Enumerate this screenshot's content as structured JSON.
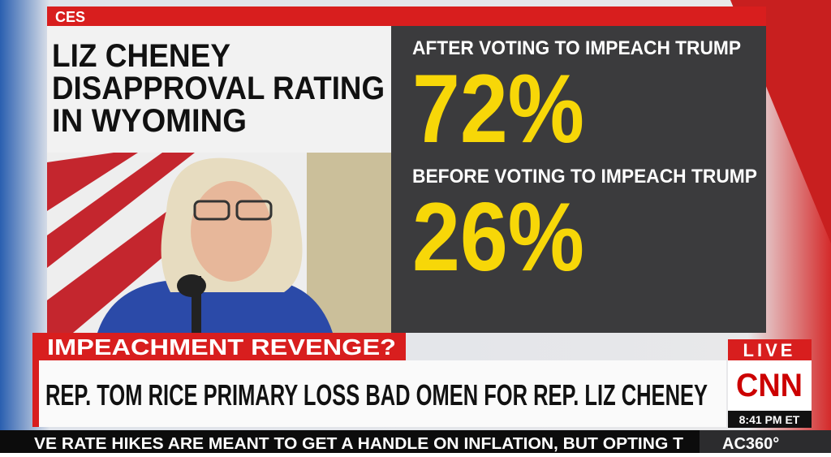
{
  "graphic": {
    "source": "CES",
    "title_lines": [
      "LIZ CHENEY",
      "DISAPPROVAL RATING",
      "IN WYOMING"
    ],
    "after_label": "AFTER VOTING TO IMPEACH TRUMP",
    "after_value": "72%",
    "before_label": "BEFORE VOTING TO IMPEACH TRUMP",
    "before_value": "26%"
  },
  "lower_third": {
    "tag": "IMPEACHMENT REVENGE?",
    "headline": "REP. TOM RICE PRIMARY LOSS BAD OMEN FOR REP. LIZ CHENEY"
  },
  "bug": {
    "live": "LIVE",
    "network": "CNN",
    "time": "8:41 PM ET"
  },
  "ticker": {
    "text": "VE RATE HIKES ARE MEANT TO GET A HANDLE ON INFLATION, BUT OPTING T",
    "show": "AC360°"
  }
}
